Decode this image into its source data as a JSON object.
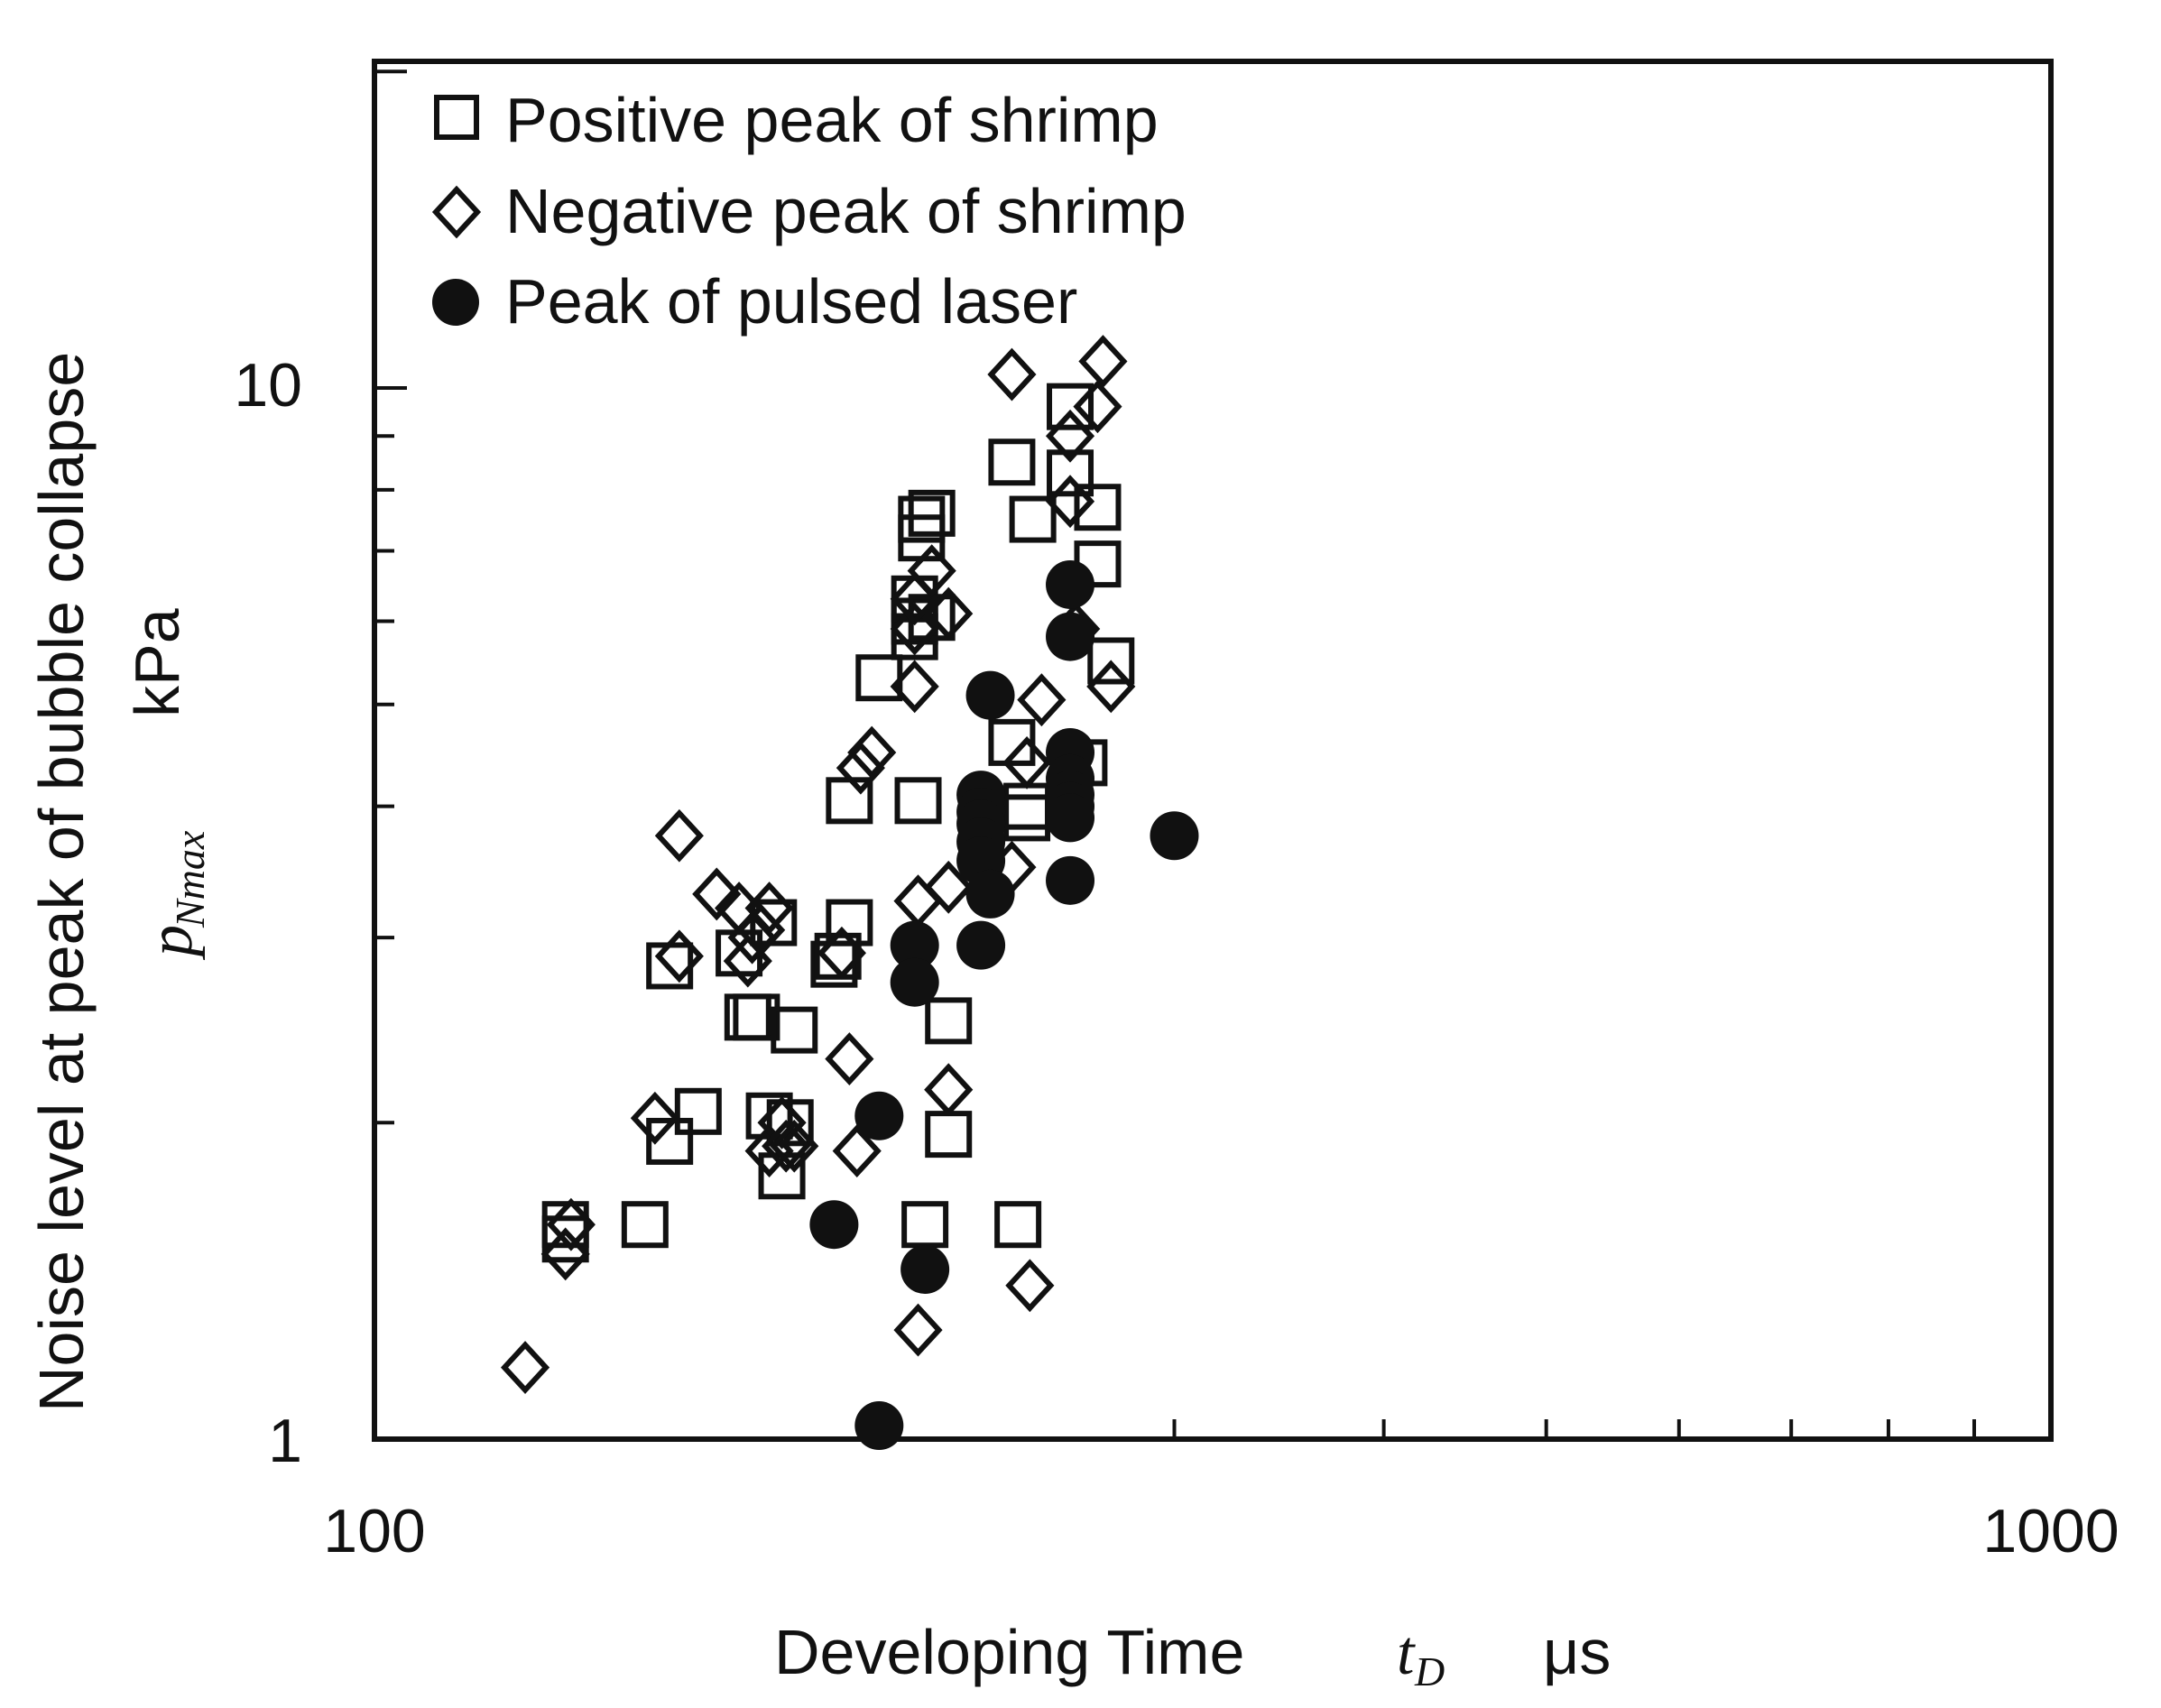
{
  "chart_data": {
    "type": "scatter",
    "xscale": "log",
    "yscale": "log",
    "xlim": [
      100,
      1000
    ],
    "ylim": [
      1,
      20
    ],
    "x_tick_labels": [
      "100",
      "1000"
    ],
    "y_tick_labels": [
      "1",
      "10"
    ],
    "xlabel": "Developing Time",
    "xlabel_symbol": "t",
    "xlabel_symbol_sub": "D",
    "xlabel_unit": "μs",
    "ylabel": "Noise level at peak of bubble collapse",
    "ylabel_unit": "kPa",
    "ylabel_symbol": "p",
    "ylabel_symbol_sub": "Nmax",
    "legend_position": "top-left",
    "series": [
      {
        "name": "Positive peak of shrimp",
        "marker": "square",
        "points": [
          [
            130,
            1.6
          ],
          [
            130,
            1.55
          ],
          [
            145,
            1.6
          ],
          [
            150,
            1.92
          ],
          [
            150,
            2.82
          ],
          [
            156,
            2.05
          ],
          [
            165,
            2.9
          ],
          [
            167,
            2.52
          ],
          [
            169,
            2.52
          ],
          [
            172,
            2.03
          ],
          [
            173,
            3.1
          ],
          [
            175,
            1.78
          ],
          [
            177,
            2.0
          ],
          [
            178,
            2.45
          ],
          [
            188,
            2.83
          ],
          [
            189,
            2.88
          ],
          [
            192,
            3.1
          ],
          [
            192,
            4.05
          ],
          [
            200,
            5.3
          ],
          [
            210,
            5.8
          ],
          [
            210,
            6.0
          ],
          [
            210,
            6.3
          ],
          [
            211,
            4.05
          ],
          [
            212,
            7.2
          ],
          [
            212,
            7.5
          ],
          [
            213,
            1.6
          ],
          [
            215,
            7.6
          ],
          [
            215,
            6.05
          ],
          [
            220,
            1.95
          ],
          [
            220,
            2.5
          ],
          [
            240,
            8.5
          ],
          [
            240,
            4.6
          ],
          [
            242,
            1.6
          ],
          [
            245,
            3.9
          ],
          [
            245,
            4.0
          ],
          [
            247,
            7.5
          ],
          [
            260,
            9.6
          ],
          [
            260,
            8.3
          ],
          [
            265,
            4.4
          ],
          [
            270,
            6.8
          ],
          [
            270,
            7.7
          ],
          [
            275,
            5.5
          ]
        ]
      },
      {
        "name": "Negative peak of shrimp",
        "marker": "diamond",
        "points": [
          [
            123,
            1.17
          ],
          [
            130,
            1.5
          ],
          [
            131,
            1.6
          ],
          [
            147,
            2.02
          ],
          [
            152,
            2.88
          ],
          [
            152,
            3.75
          ],
          [
            160,
            3.3
          ],
          [
            165,
            3.2
          ],
          [
            167,
            2.85
          ],
          [
            168,
            3.0
          ],
          [
            170,
            3.05
          ],
          [
            172,
            3.2
          ],
          [
            172,
            1.88
          ],
          [
            175,
            2.0
          ],
          [
            176,
            1.9
          ],
          [
            178,
            1.9
          ],
          [
            190,
            2.9
          ],
          [
            192,
            2.3
          ],
          [
            194,
            1.88
          ],
          [
            195,
            4.35
          ],
          [
            198,
            4.5
          ],
          [
            210,
            5.2
          ],
          [
            210,
            5.9
          ],
          [
            210,
            6.3
          ],
          [
            211,
            3.25
          ],
          [
            215,
            6.7
          ],
          [
            220,
            6.1
          ],
          [
            220,
            3.35
          ],
          [
            220,
            2.15
          ],
          [
            211,
            1.27
          ],
          [
            240,
            10.3
          ],
          [
            240,
            3.5
          ],
          [
            245,
            4.4
          ],
          [
            246,
            1.4
          ],
          [
            250,
            5.05
          ],
          [
            260,
            9.0
          ],
          [
            260,
            7.8
          ],
          [
            262,
            5.9
          ],
          [
            270,
            9.6
          ],
          [
            272,
            10.6
          ],
          [
            275,
            5.2
          ]
        ]
      },
      {
        "name": "Peak of pulsed laser",
        "marker": "circle",
        "points": [
          [
            188,
            1.6
          ],
          [
            200,
            2.03
          ],
          [
            200,
            1.03
          ],
          [
            210,
            2.95
          ],
          [
            210,
            2.72
          ],
          [
            213,
            1.45
          ],
          [
            230,
            4.1
          ],
          [
            230,
            3.95
          ],
          [
            230,
            3.85
          ],
          [
            230,
            3.7
          ],
          [
            230,
            3.55
          ],
          [
            230,
            2.95
          ],
          [
            233,
            5.1
          ],
          [
            233,
            3.3
          ],
          [
            260,
            6.5
          ],
          [
            260,
            5.8
          ],
          [
            260,
            4.5
          ],
          [
            260,
            4.25
          ],
          [
            260,
            4.1
          ],
          [
            260,
            4.0
          ],
          [
            260,
            3.9
          ],
          [
            260,
            3.4
          ],
          [
            300,
            3.75
          ]
        ]
      }
    ]
  }
}
